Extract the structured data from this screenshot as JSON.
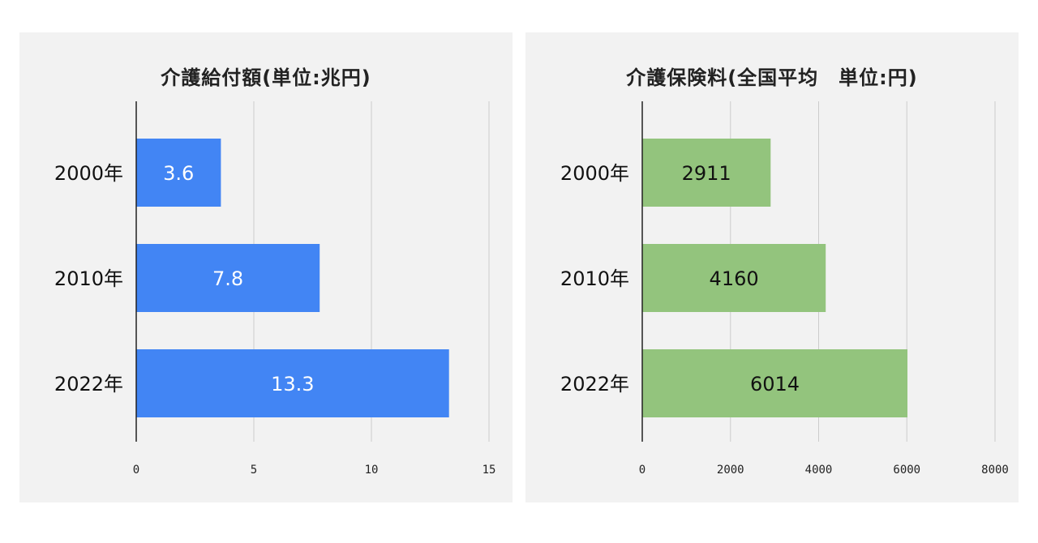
{
  "chart_data": [
    {
      "type": "bar",
      "orientation": "horizontal",
      "title": "介護給付額(単位:兆円)",
      "categories": [
        "2000年",
        "2010年",
        "2022年"
      ],
      "values": [
        3.6,
        7.8,
        13.3
      ],
      "value_labels": [
        "3.6",
        "7.8",
        "13.3"
      ],
      "xlim": [
        0,
        15
      ],
      "x_ticks": [
        "0",
        "5",
        "10",
        "15"
      ],
      "grid": true,
      "bar_color": "#4285f4",
      "label_color": "#ffffff"
    },
    {
      "type": "bar",
      "orientation": "horizontal",
      "title": "介護保険料(全国平均　単位:円)",
      "categories": [
        "2000年",
        "2010年",
        "2022年"
      ],
      "values": [
        2911,
        4160,
        6014
      ],
      "value_labels": [
        "2911",
        "4160",
        "6014"
      ],
      "xlim": [
        0,
        8000
      ],
      "x_ticks": [
        "0",
        "2000",
        "4000",
        "6000",
        "8000"
      ],
      "grid": true,
      "bar_color": "#93c47d",
      "label_color": "#111111"
    }
  ]
}
